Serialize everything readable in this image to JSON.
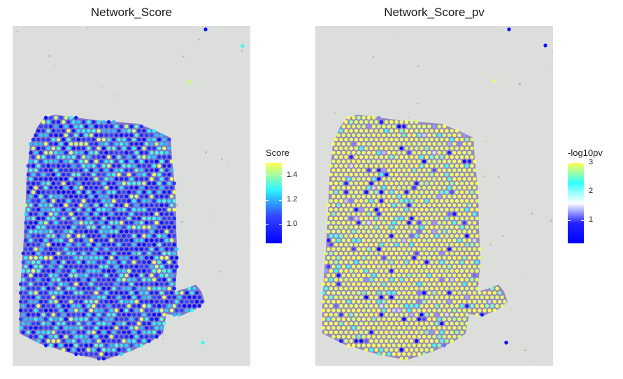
{
  "panels": [
    {
      "title": "Network_Score",
      "legend": {
        "title": "Score",
        "ticks": [
          "1.4",
          "1.2",
          "1.0"
        ],
        "tick_values": [
          1.4,
          1.2,
          1.0
        ],
        "range": [
          0.85,
          1.5
        ],
        "colors": [
          "#0000ff",
          "#3344ff",
          "#2ff6ff",
          "#ffff55"
        ]
      }
    },
    {
      "title": "Network_Score_pv",
      "legend": {
        "title": "-log10pv",
        "ticks": [
          "3",
          "2",
          "1"
        ],
        "tick_values": [
          3,
          2,
          1
        ],
        "range": [
          0.2,
          3.0
        ],
        "colors": [
          "#0000ff",
          "#2222ff",
          "#ffffff",
          "#33ffff",
          "#ffff55"
        ]
      }
    }
  ],
  "chart_data": [
    {
      "type": "scatter",
      "title": "Network_Score",
      "color_legend": "Score",
      "color_range": [
        0.85,
        1.5
      ],
      "description_values": "spatial spot scores; majority low (blue ~0.9-1.1), scattered cyan (~1.2-1.35) and yellow (~1.45)"
    },
    {
      "type": "scatter",
      "title": "Network_Score_pv",
      "color_legend": "-log10pv",
      "color_range": [
        0.2,
        3.0
      ],
      "description_values": "majority high significance (yellow ~3), scattered blue spots (~0.5-1.5)"
    }
  ]
}
